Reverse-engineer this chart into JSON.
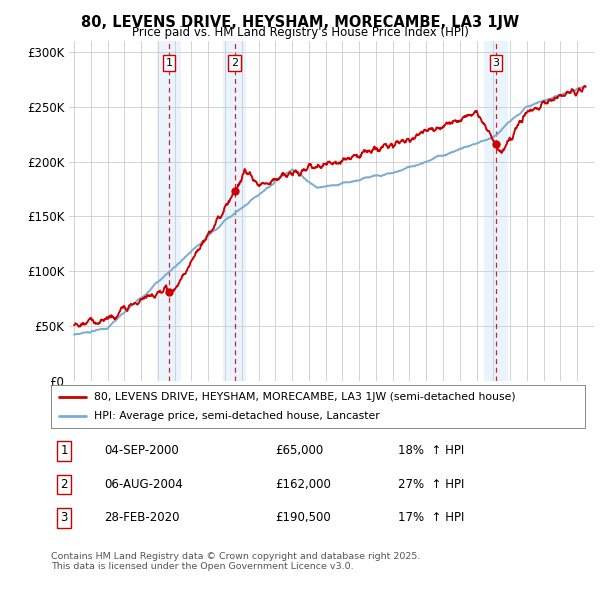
{
  "title": "80, LEVENS DRIVE, HEYSHAM, MORECAMBE, LA3 1JW",
  "subtitle": "Price paid vs. HM Land Registry's House Price Index (HPI)",
  "bg_color": "#ffffff",
  "grid_color": "#cccccc",
  "sale_color": "#cc0000",
  "hpi_color": "#7aadcf",
  "sale_label": "80, LEVENS DRIVE, HEYSHAM, MORECAMBE, LA3 1JW (semi-detached house)",
  "hpi_label": "HPI: Average price, semi-detached house, Lancaster",
  "ylim": [
    0,
    310000
  ],
  "yticks": [
    0,
    50000,
    100000,
    150000,
    200000,
    250000,
    300000
  ],
  "ytick_labels": [
    "£0",
    "£50K",
    "£100K",
    "£150K",
    "£200K",
    "£250K",
    "£300K"
  ],
  "sales": [
    {
      "num": 1,
      "year": 2000.67,
      "price": 65000,
      "date": "04-SEP-2000",
      "pct": "18%",
      "dir": "↑"
    },
    {
      "num": 2,
      "year": 2004.58,
      "price": 162000,
      "date": "06-AUG-2004",
      "pct": "27%",
      "dir": "↑"
    },
    {
      "num": 3,
      "year": 2020.16,
      "price": 190500,
      "date": "28-FEB-2020",
      "pct": "17%",
      "dir": "↑"
    }
  ],
  "footnote": "Contains HM Land Registry data © Crown copyright and database right 2025.\nThis data is licensed under the Open Government Licence v3.0.",
  "shade_color": "#ddeeff"
}
